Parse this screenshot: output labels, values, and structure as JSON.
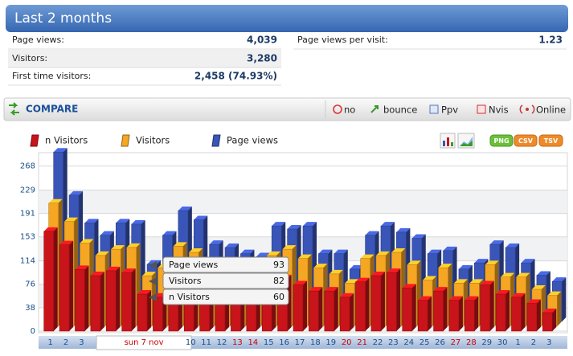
{
  "header": {
    "title": "Last 2 months"
  },
  "stats": {
    "rows": [
      [
        "Page views:",
        "4,039"
      ],
      [
        "Visitors:",
        "3,280"
      ],
      [
        "First time visitors:",
        "2,458 (74.93%)"
      ]
    ],
    "side": [
      "Page views per visit:",
      "1.23"
    ]
  },
  "toolbar": {
    "title": "COMPARE",
    "options": [
      "no",
      "bounce",
      "Ppv",
      "Nvis",
      "Online"
    ]
  },
  "export": [
    "PNG",
    "CSV",
    "TSV"
  ],
  "chart_data": {
    "type": "bar",
    "three_d": true,
    "grid": true,
    "categories": [
      "1",
      "2",
      "3",
      null,
      null,
      null,
      "sun 7 nov",
      null,
      null,
      "10",
      "11",
      "12",
      "13",
      "14",
      "15",
      "16",
      "17",
      "18",
      "19",
      "20",
      "21",
      "22",
      "23",
      "24",
      "25",
      "26",
      "27",
      "28",
      "29",
      "30",
      "1",
      "2",
      "3"
    ],
    "category_label_colors": [
      "#1a4f8a",
      "#1a4f8a",
      "#1a4f8a",
      "#1a4f8a",
      "#1a4f8a",
      "#1a4f8a",
      "#cc0000",
      "#1a4f8a",
      "#1a4f8a",
      "#1a4f8a",
      "#1a4f8a",
      "#1a4f8a",
      "#cc0000",
      "#cc0000",
      "#1a4f8a",
      "#1a4f8a",
      "#1a4f8a",
      "#1a4f8a",
      "#1a4f8a",
      "#cc0000",
      "#cc0000",
      "#1a4f8a",
      "#1a4f8a",
      "#1a4f8a",
      "#1a4f8a",
      "#1a4f8a",
      "#cc0000",
      "#cc0000",
      "#1a4f8a",
      "#1a4f8a",
      "#1a4f8a",
      "#1a4f8a",
      "#1a4f8a"
    ],
    "hover": 6,
    "series": [
      {
        "name": "n Visitors",
        "color": "#c8141a",
        "values": [
          162,
          140,
          100,
          90,
          98,
          95,
          60,
          55,
          75,
          70,
          60,
          65,
          55,
          50,
          75,
          85,
          75,
          65,
          65,
          55,
          80,
          90,
          95,
          70,
          50,
          65,
          50,
          50,
          75,
          60,
          55,
          45,
          30
        ]
      },
      {
        "name": "Visitors",
        "color": "#f5a623",
        "values": [
          200,
          170,
          135,
          115,
          125,
          128,
          82,
          95,
          130,
          120,
          95,
          95,
          85,
          80,
          115,
          125,
          110,
          95,
          85,
          70,
          110,
          115,
          120,
          100,
          75,
          95,
          70,
          70,
          100,
          80,
          80,
          60,
          50
        ]
      },
      {
        "name": "Page views",
        "color": "#3a55b8",
        "values": [
          275,
          205,
          160,
          140,
          160,
          158,
          93,
          140,
          180,
          165,
          125,
          120,
          110,
          105,
          155,
          150,
          155,
          110,
          110,
          85,
          140,
          155,
          145,
          135,
          110,
          115,
          85,
          95,
          125,
          120,
          95,
          75,
          65
        ]
      }
    ],
    "ylim": [
      0,
      287
    ],
    "yticks": [
      0,
      38,
      76,
      114,
      153,
      191,
      229,
      268
    ]
  }
}
